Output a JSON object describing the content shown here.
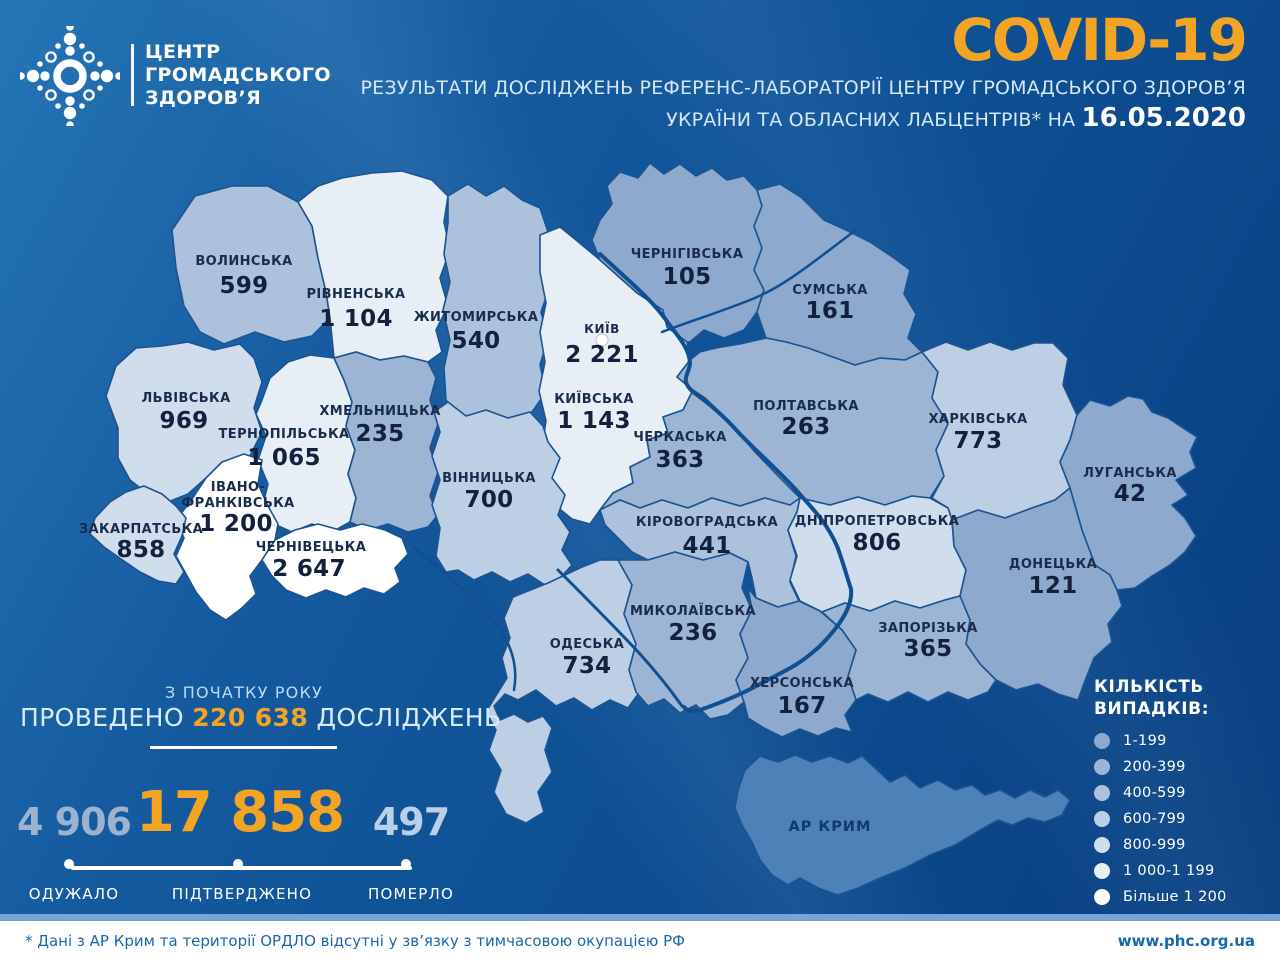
{
  "header": {
    "logo": [
      "ЦЕНТР",
      "ГРОМАДСЬКОГО",
      "ЗДОРОВ’Я"
    ],
    "title": "COVID-19",
    "subtitle_line1": "РЕЗУЛЬТАТИ ДОСЛІДЖЕНЬ РЕФЕРЕНС-ЛАБОРАТОРІЇ ЦЕНТРУ ГРОМАДСЬКОГО ЗДОРОВ’Я",
    "subtitle_line2": "УКРАЇНИ ТА ОБЛАСНИХ ЛАБЦЕНТРІВ* НА",
    "date": "16.05.2020",
    "accent_color": "#F2A422"
  },
  "map": {
    "palette": {
      "b1": "#8DA9CD",
      "b2": "#9DB5D5",
      "b3": "#ACC2DC",
      "b4": "#BDCFE4",
      "b5": "#D0DDEC",
      "b6": "#E7EEF6",
      "b7": "#FFFFFF",
      "crimea": "#4D82B8"
    },
    "border_color": "#1C5391",
    "river_color": "#0F4F92",
    "regions": [
      {
        "id": "vol",
        "name": "ВОЛИНСЬКА",
        "value": "599",
        "bucket": "b3"
      },
      {
        "id": "riv",
        "name": "РІВНЕНСЬКА",
        "value": "1 104",
        "bucket": "b6"
      },
      {
        "id": "zhy",
        "name": "ЖИТОМИРСЬКА",
        "value": "540",
        "bucket": "b3"
      },
      {
        "id": "kyiv_city",
        "name": "КИЇВ",
        "value": "2 221",
        "bucket": "b7"
      },
      {
        "id": "kyv",
        "name": "КИЇВСЬКА",
        "value": "1 143",
        "bucket": "b6"
      },
      {
        "id": "che",
        "name": "ЧЕРНІГІВСЬКА",
        "value": "105",
        "bucket": "b1"
      },
      {
        "id": "sum",
        "name": "СУМСЬКА",
        "value": "161",
        "bucket": "b1"
      },
      {
        "id": "lvi",
        "name": "ЛЬВІВСЬКА",
        "value": "969",
        "bucket": "b5"
      },
      {
        "id": "ter",
        "name": "ТЕРНОПІЛЬСЬКА",
        "value": "1 065",
        "bucket": "b6"
      },
      {
        "id": "khm",
        "name": "ХМЕЛЬНИЦЬКА",
        "value": "235",
        "bucket": "b2"
      },
      {
        "id": "pol",
        "name": "ПОЛТАВСЬКА",
        "value": "263",
        "bucket": "b2"
      },
      {
        "id": "kha",
        "name": "ХАРКІВСЬКА",
        "value": "773",
        "bucket": "b4"
      },
      {
        "id": "luh",
        "name": "ЛУГАНСЬКА",
        "value": "42",
        "bucket": "b1"
      },
      {
        "id": "ifr",
        "name": "ІВАНО-ФРАНКІВСЬКА",
        "value": "1 200",
        "bucket": "b7"
      },
      {
        "id": "zak",
        "name": "ЗАКАРПАТСЬКА",
        "value": "858",
        "bucket": "b5"
      },
      {
        "id": "chv",
        "name": "ЧЕРНІВЕЦЬКА",
        "value": "2 647",
        "bucket": "b7"
      },
      {
        "id": "vin",
        "name": "ВІННИЦЬКА",
        "value": "700",
        "bucket": "b4"
      },
      {
        "id": "chk",
        "name": "ЧЕРКАСЬКА",
        "value": "363",
        "bucket": "b2"
      },
      {
        "id": "kir",
        "name": "КІРОВОГРАДСЬКА",
        "value": "441",
        "bucket": "b3"
      },
      {
        "id": "dni",
        "name": "ДНІПРОПЕТРОВСЬКА",
        "value": "806",
        "bucket": "b5"
      },
      {
        "id": "don",
        "name": "ДОНЕЦЬКА",
        "value": "121",
        "bucket": "b1"
      },
      {
        "id": "ode",
        "name": "ОДЕСЬКА",
        "value": "734",
        "bucket": "b4"
      },
      {
        "id": "myk",
        "name": "МИКОЛАЇВСЬКА",
        "value": "236",
        "bucket": "b2"
      },
      {
        "id": "zap",
        "name": "ЗАПОРІЗЬКА",
        "value": "365",
        "bucket": "b2"
      },
      {
        "id": "khe",
        "name": "ХЕРСОНСЬКА",
        "value": "167",
        "bucket": "b1"
      },
      {
        "id": "krym",
        "name": "АР КРИМ",
        "value": "",
        "bucket": "crimea"
      }
    ]
  },
  "legend": {
    "title_line1": "КІЛЬКІСТЬ",
    "title_line2": "ВИПАДКІВ:",
    "items": [
      {
        "label": "1-199",
        "color": "#8DA9CD"
      },
      {
        "label": "200-399",
        "color": "#9DB5D5"
      },
      {
        "label": "400-599",
        "color": "#ACC2DC"
      },
      {
        "label": "600-799",
        "color": "#BDCFE4"
      },
      {
        "label": "800-999",
        "color": "#D0DDEC"
      },
      {
        "label": "1 000-1 199",
        "color": "#E7EEF6"
      },
      {
        "label": "Більше 1 200",
        "color": "#FFFFFF"
      }
    ]
  },
  "stats": {
    "tagline": "З ПОЧАТКУ РОКУ",
    "tests_prefix": "ПРОВЕДЕНО",
    "tests_value": "220 638",
    "tests_suffix": "ДОСЛІДЖЕНЬ",
    "recovered": {
      "value": "4 906",
      "label": "ОДУЖАЛО"
    },
    "confirmed": {
      "value": "17 858",
      "label": "ПІДТВЕРДЖЕНО"
    },
    "died": {
      "value": "497",
      "label": "ПОМЕРЛО"
    }
  },
  "footer": {
    "note": "* Дані з АР Крим та території ОРДЛО відсутні у зв’язку з тимчасовою окупацією РФ",
    "url": "www.phc.org.ua"
  }
}
